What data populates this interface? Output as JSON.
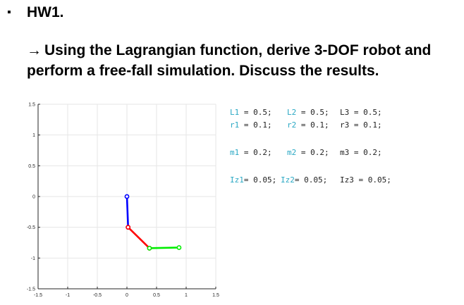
{
  "header": {
    "bullet_symbol": "▪",
    "title": "HW1.",
    "arrow": "→",
    "subtitle": "Using the Lagrangian function, derive 3-DOF robot and perform a free-fall simulation. Discuss the results."
  },
  "chart_data": {
    "type": "line",
    "xlim": [
      -1.5,
      1.5
    ],
    "ylim": [
      -1.5,
      1.5
    ],
    "x_ticks": [
      "-1.5",
      "-1",
      "-0.5",
      "0",
      "0.5",
      "1",
      "1.5"
    ],
    "y_ticks": [
      "1.5",
      "1",
      "0.5",
      "0",
      "-0.5",
      "-1",
      "-1.5"
    ],
    "grid": true,
    "series": [
      {
        "color": "#0000ff",
        "x": [
          0,
          0.02
        ],
        "y": [
          0,
          -0.5
        ]
      },
      {
        "color": "#ff0000",
        "x": [
          0.02,
          0.38
        ],
        "y": [
          -0.5,
          -0.84
        ]
      },
      {
        "color": "#00ee00",
        "x": [
          0.38,
          0.88
        ],
        "y": [
          -0.84,
          -0.83
        ]
      }
    ]
  },
  "params": {
    "row1": [
      {
        "k": "L1",
        "v": " = 0.5;"
      },
      {
        "k": "L2",
        "v": " = 0.5;"
      },
      {
        "k": "",
        "v": "L3 = 0.5;"
      }
    ],
    "row2": [
      {
        "k": "r1",
        "v": " = 0.1;"
      },
      {
        "k": "r2",
        "v": " = 0.1;"
      },
      {
        "k": "",
        "v": "r3 = 0.1;"
      }
    ],
    "row3": [
      {
        "k": "m1",
        "v": " = 0.2;"
      },
      {
        "k": "m2",
        "v": " = 0.2;"
      },
      {
        "k": "",
        "v": "m3 = 0.2;"
      }
    ],
    "row4": [
      {
        "k": "Iz1",
        "v": "= 0.05;"
      },
      {
        "k": "Iz2",
        "v": "= 0.05;"
      },
      {
        "k": "",
        "v": "Iz3 = 0.05;"
      }
    ]
  }
}
